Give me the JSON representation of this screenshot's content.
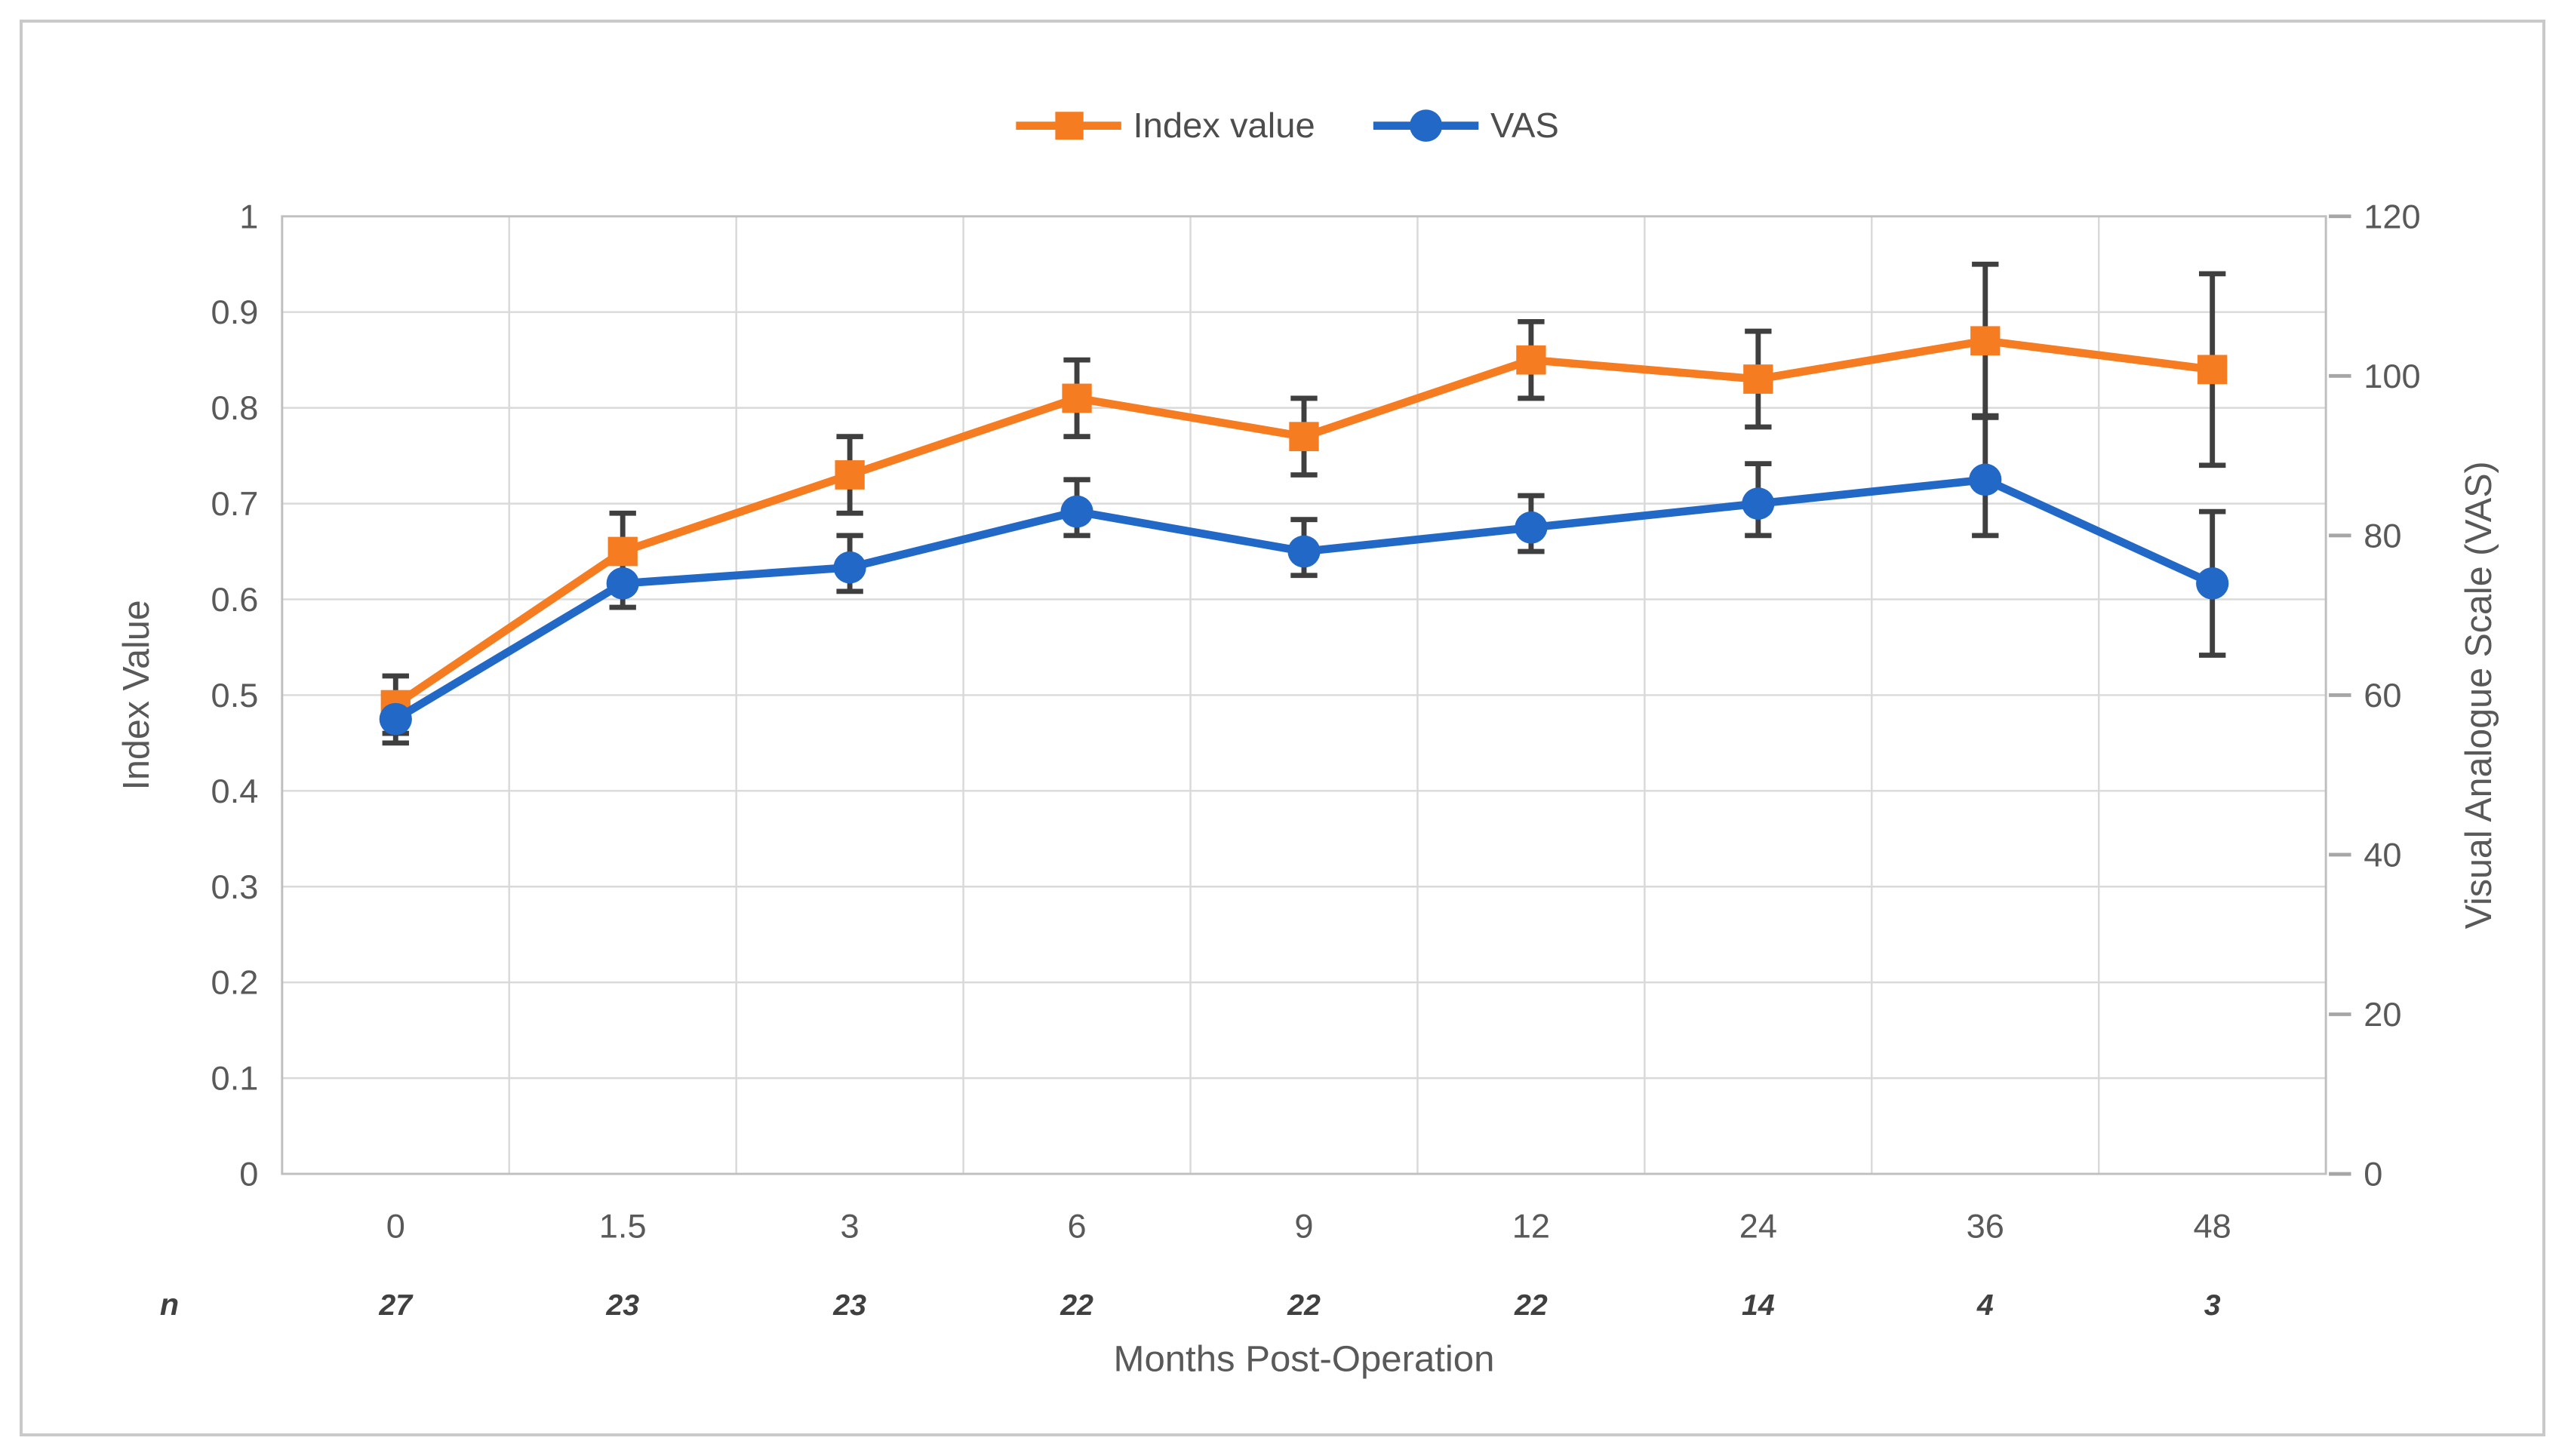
{
  "chart_data": {
    "type": "line",
    "xlabel": "Months Post-Operation",
    "x_categories": [
      "0",
      "1.5",
      "3",
      "6",
      "9",
      "12",
      "24",
      "36",
      "48"
    ],
    "n_row": {
      "label": "n",
      "values": [
        "27",
        "23",
        "23",
        "22",
        "22",
        "22",
        "14",
        "4",
        "3"
      ]
    },
    "left_axis": {
      "label": "Index Value",
      "min": 0,
      "max": 1,
      "step": 0.1,
      "ticks": [
        "1",
        "0.9",
        "0.8",
        "0.7",
        "0.6",
        "0.5",
        "0.4",
        "0.3",
        "0.2",
        "0.1",
        "0"
      ]
    },
    "right_axis": {
      "label": "Visual Analogue Scale (VAS)",
      "min": 0,
      "max": 120,
      "step": 20,
      "ticks": [
        "120",
        "100",
        "80",
        "60",
        "40",
        "20",
        "0"
      ]
    },
    "legend": [
      {
        "label": "Index value",
        "marker": "square",
        "color": "#f57c21"
      },
      {
        "label": "VAS",
        "marker": "circle",
        "color": "#2268c6"
      }
    ],
    "series": [
      {
        "name": "Index value",
        "axis": "left",
        "marker": "square",
        "color": "#f57c21",
        "values": [
          0.49,
          0.65,
          0.73,
          0.81,
          0.77,
          0.85,
          0.83,
          0.87,
          0.84
        ],
        "err_hi": [
          0.52,
          0.69,
          0.77,
          0.85,
          0.81,
          0.89,
          0.88,
          0.95,
          0.94
        ],
        "err_lo": [
          0.46,
          0.62,
          0.69,
          0.77,
          0.73,
          0.81,
          0.78,
          0.79,
          0.74
        ]
      },
      {
        "name": "VAS",
        "axis": "right",
        "marker": "circle",
        "color": "#2268c6",
        "values": [
          57,
          74,
          76,
          83,
          78,
          81,
          84,
          87,
          74
        ],
        "err_hi": [
          60,
          78,
          80,
          87,
          82,
          85,
          89,
          95,
          83
        ],
        "err_lo": [
          54,
          71,
          73,
          80,
          75,
          78,
          80,
          80,
          65
        ]
      }
    ],
    "colors": {
      "error_bar": "#3f3f3f",
      "gridline": "#d9d9d9",
      "axis_border": "#bfbfbf",
      "tick_text": "#595959",
      "n_text": "#404040"
    }
  }
}
